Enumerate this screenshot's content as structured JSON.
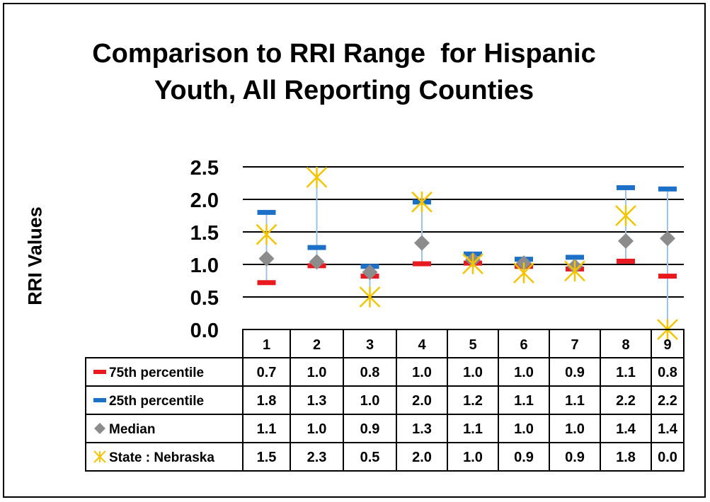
{
  "chart_data": {
    "type": "table",
    "title_lines": [
      "Comparison to RRI Range  for Hispanic",
      "Youth, All Reporting Counties"
    ],
    "ylabel": "RRI Values",
    "ylim": [
      0,
      2.5
    ],
    "y_ticks": [
      "0.0",
      "0.5",
      "1.0",
      "1.5",
      "2.0",
      "2.5"
    ],
    "grid": true,
    "categories": [
      "1",
      "2",
      "3",
      "4",
      "5",
      "6",
      "7",
      "8",
      "9"
    ],
    "series": [
      {
        "name": "75th percentile",
        "marker": "dash",
        "color": "#e8191f",
        "values": [
          0.72,
          0.98,
          0.82,
          1.01,
          1.02,
          0.97,
          0.93,
          1.05,
          0.82
        ],
        "labels": [
          "0.7",
          "1.0",
          "0.8",
          "1.0",
          "1.0",
          "1.0",
          "0.9",
          "1.1",
          "0.8"
        ]
      },
      {
        "name": "25th percentile",
        "marker": "dash",
        "color": "#1d70c8",
        "values": [
          1.8,
          1.26,
          0.97,
          1.96,
          1.16,
          1.08,
          1.11,
          2.18,
          2.16
        ],
        "labels": [
          "1.8",
          "1.3",
          "1.0",
          "2.0",
          "1.2",
          "1.1",
          "1.1",
          "2.2",
          "2.2"
        ]
      },
      {
        "name": "Median",
        "marker": "diamond",
        "color": "#8c8c8c",
        "values": [
          1.09,
          1.04,
          0.88,
          1.33,
          1.07,
          1.02,
          0.97,
          1.36,
          1.4
        ],
        "labels": [
          "1.1",
          "1.0",
          "0.9",
          "1.3",
          "1.1",
          "1.0",
          "1.0",
          "1.4",
          "1.4"
        ]
      },
      {
        "name": "State : Nebraska",
        "marker": "star",
        "color": "#f5c400",
        "values": [
          1.46,
          2.34,
          0.5,
          1.96,
          1.01,
          0.87,
          0.9,
          1.75,
          0.0
        ],
        "labels": [
          "1.5",
          "2.3",
          "0.5",
          "2.0",
          "1.0",
          "0.9",
          "0.9",
          "1.8",
          "0.0"
        ]
      }
    ],
    "range_line_color": "#9dc3e6"
  }
}
